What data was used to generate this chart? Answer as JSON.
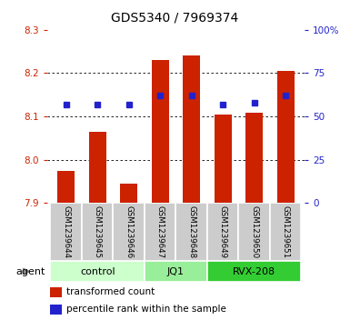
{
  "title": "GDS5340 / 7969374",
  "samples": [
    "GSM1239644",
    "GSM1239645",
    "GSM1239646",
    "GSM1239647",
    "GSM1239648",
    "GSM1239649",
    "GSM1239650",
    "GSM1239651"
  ],
  "bar_values": [
    7.975,
    8.065,
    7.945,
    8.23,
    8.24,
    8.105,
    8.108,
    8.205
  ],
  "percentile_values": [
    57,
    57,
    57,
    62,
    62,
    57,
    58,
    62
  ],
  "ylim": [
    7.9,
    8.3
  ],
  "y_ticks_left": [
    7.9,
    8.0,
    8.1,
    8.2,
    8.3
  ],
  "y_ticks_right": [
    0,
    25,
    50,
    75,
    100
  ],
  "groups": [
    {
      "label": "control",
      "start": 0,
      "end": 3,
      "color": "#ccffcc"
    },
    {
      "label": "JQ1",
      "start": 3,
      "end": 5,
      "color": "#99ee99"
    },
    {
      "label": "RVX-208",
      "start": 5,
      "end": 8,
      "color": "#33cc33"
    }
  ],
  "bar_color": "#cc2200",
  "dot_color": "#2222cc",
  "bar_bottom": 7.9,
  "legend_items": [
    {
      "color": "#cc2200",
      "label": "transformed count"
    },
    {
      "color": "#2222cc",
      "label": "percentile rank within the sample"
    }
  ],
  "agent_label": "agent",
  "left_tick_color": "#cc2200",
  "right_tick_color": "#2222cc",
  "col_bg_color": "#cccccc",
  "col_border_color": "#aaaaaa"
}
